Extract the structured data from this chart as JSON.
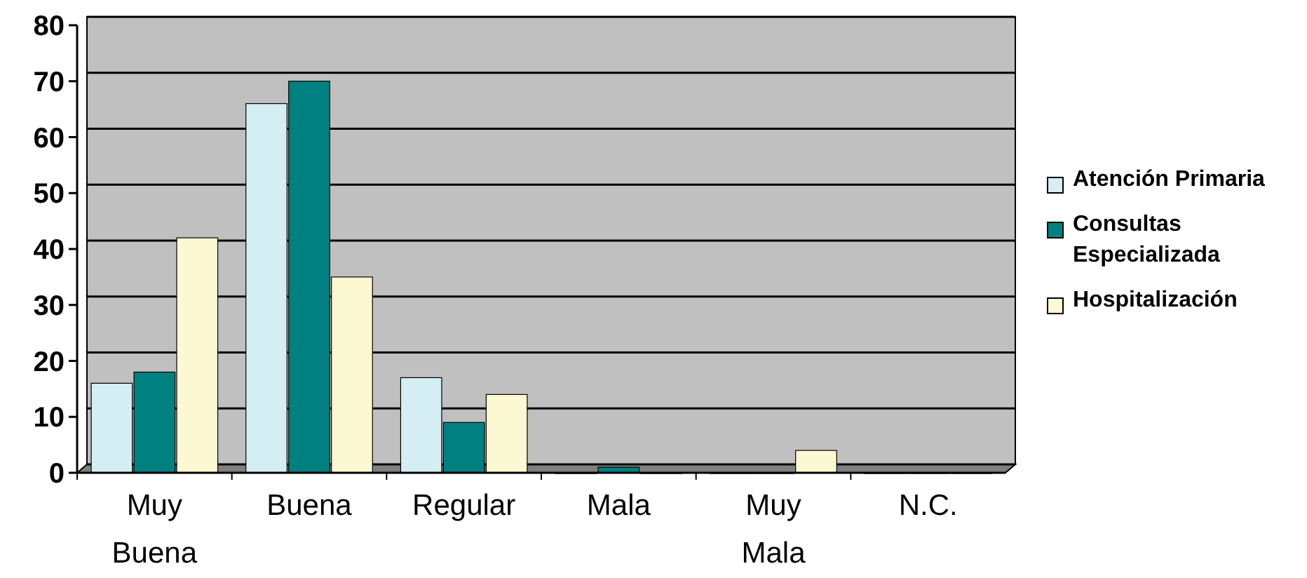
{
  "chart_data": {
    "type": "bar",
    "categories": [
      "Muy Buena",
      "Buena",
      "Regular",
      "Mala",
      "Muy Mala",
      "N.C."
    ],
    "series": [
      {
        "name": "Atención Primaria",
        "color": "#d4eef4",
        "values": [
          16,
          66,
          17,
          0,
          0,
          0
        ]
      },
      {
        "name": "Consultas Especializada",
        "color": "#008080",
        "values": [
          18,
          70,
          9,
          1,
          0,
          0
        ]
      },
      {
        "name": "Hospitalización",
        "color": "#fbf8d2",
        "values": [
          42,
          35,
          14,
          0,
          4,
          0
        ]
      }
    ],
    "ylim": [
      0,
      80
    ],
    "yticks": [
      0,
      10,
      20,
      30,
      40,
      50,
      60,
      70,
      80
    ],
    "grid": "y",
    "legend": "right"
  }
}
